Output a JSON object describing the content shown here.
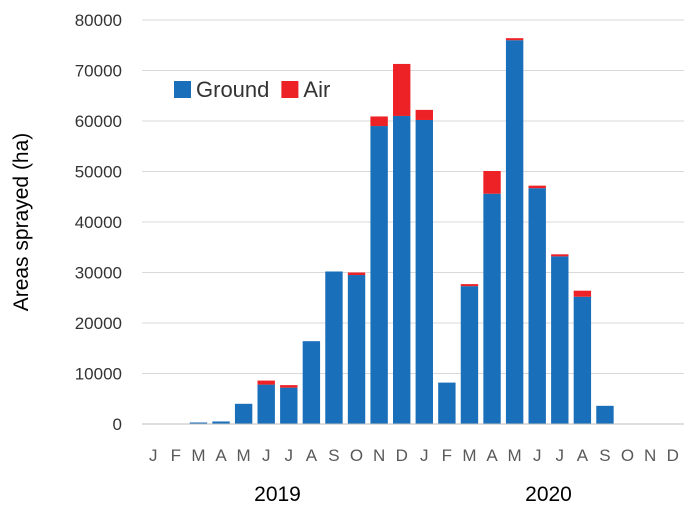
{
  "chart_data": {
    "type": "bar",
    "stacked": true,
    "ylabel": "Areas sprayed (ha)",
    "xlabel": "",
    "ylim": [
      0,
      80000
    ],
    "y_ticks": [
      "0",
      "10000",
      "20000",
      "30000",
      "40000",
      "50000",
      "60000",
      "70000",
      "80000"
    ],
    "grid": true,
    "legend_position": "top-left",
    "categories": [
      "J",
      "F",
      "M",
      "A",
      "M",
      "J",
      "J",
      "A",
      "S",
      "O",
      "N",
      "D",
      "J",
      "F",
      "M",
      "A",
      "M",
      "J",
      "J",
      "A",
      "S",
      "O",
      "N",
      "D"
    ],
    "year_labels": [
      {
        "label": "2019",
        "start_index": 0,
        "end_index": 11
      },
      {
        "label": "2020",
        "start_index": 12,
        "end_index": 23
      }
    ],
    "series": [
      {
        "name": "Ground",
        "color": "#1a6fba",
        "values": [
          0,
          0,
          300,
          500,
          4000,
          7800,
          7200,
          16400,
          30200,
          29500,
          59000,
          61000,
          60200,
          8200,
          27300,
          45600,
          76000,
          46700,
          33200,
          25200,
          3600,
          0,
          0,
          0
        ]
      },
      {
        "name": "Air",
        "color": "#ed2226",
        "values": [
          0,
          0,
          0,
          0,
          0,
          800,
          500,
          0,
          0,
          500,
          1900,
          10300,
          2000,
          0,
          400,
          4500,
          400,
          500,
          400,
          1200,
          0,
          0,
          0,
          0
        ]
      }
    ]
  }
}
